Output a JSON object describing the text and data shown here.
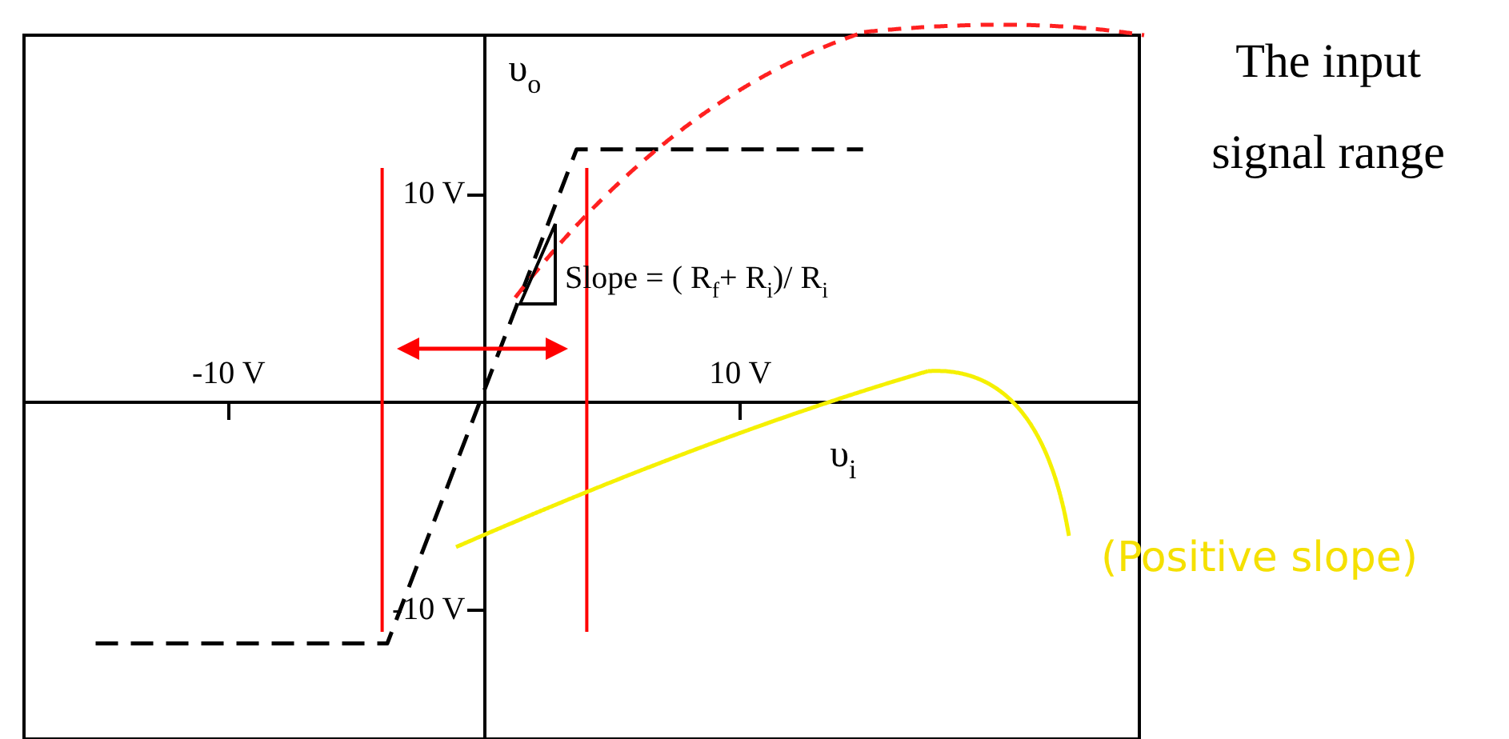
{
  "chart_data": {
    "type": "line",
    "xlabel": "υ$_{i}$",
    "ylabel": "υ$_{o}$",
    "xlim": [
      -18,
      25.6
    ],
    "ylim": [
      -16.2,
      17.7
    ],
    "xticks": [
      {
        "value": -10,
        "label": "-10 V"
      },
      {
        "value": 10,
        "label": "10 V"
      }
    ],
    "yticks": [
      {
        "value": -10,
        "label": "-10 V"
      },
      {
        "value": 10,
        "label": "10 V"
      }
    ],
    "series": [
      {
        "color": "#000000",
        "x": [
          -15.2,
          -3.8,
          3.6,
          14.8
        ],
        "values": [
          -11.6,
          -11.6,
          12.2,
          12.2
        ],
        "line_style": "dashed",
        "marker": "none"
      }
    ],
    "ref_lines": [
      {
        "axis": "x",
        "value": -4,
        "color": "#ff0000"
      },
      {
        "axis": "x",
        "value": 4,
        "color": "#ff0000"
      }
    ],
    "annotations": [
      "Slope = ( R$_{f}$+ R$_{i}$)/ R$_{i}$",
      "The input signal range",
      "(Positive slope)"
    ],
    "grid": false,
    "legend": false
  }
}
